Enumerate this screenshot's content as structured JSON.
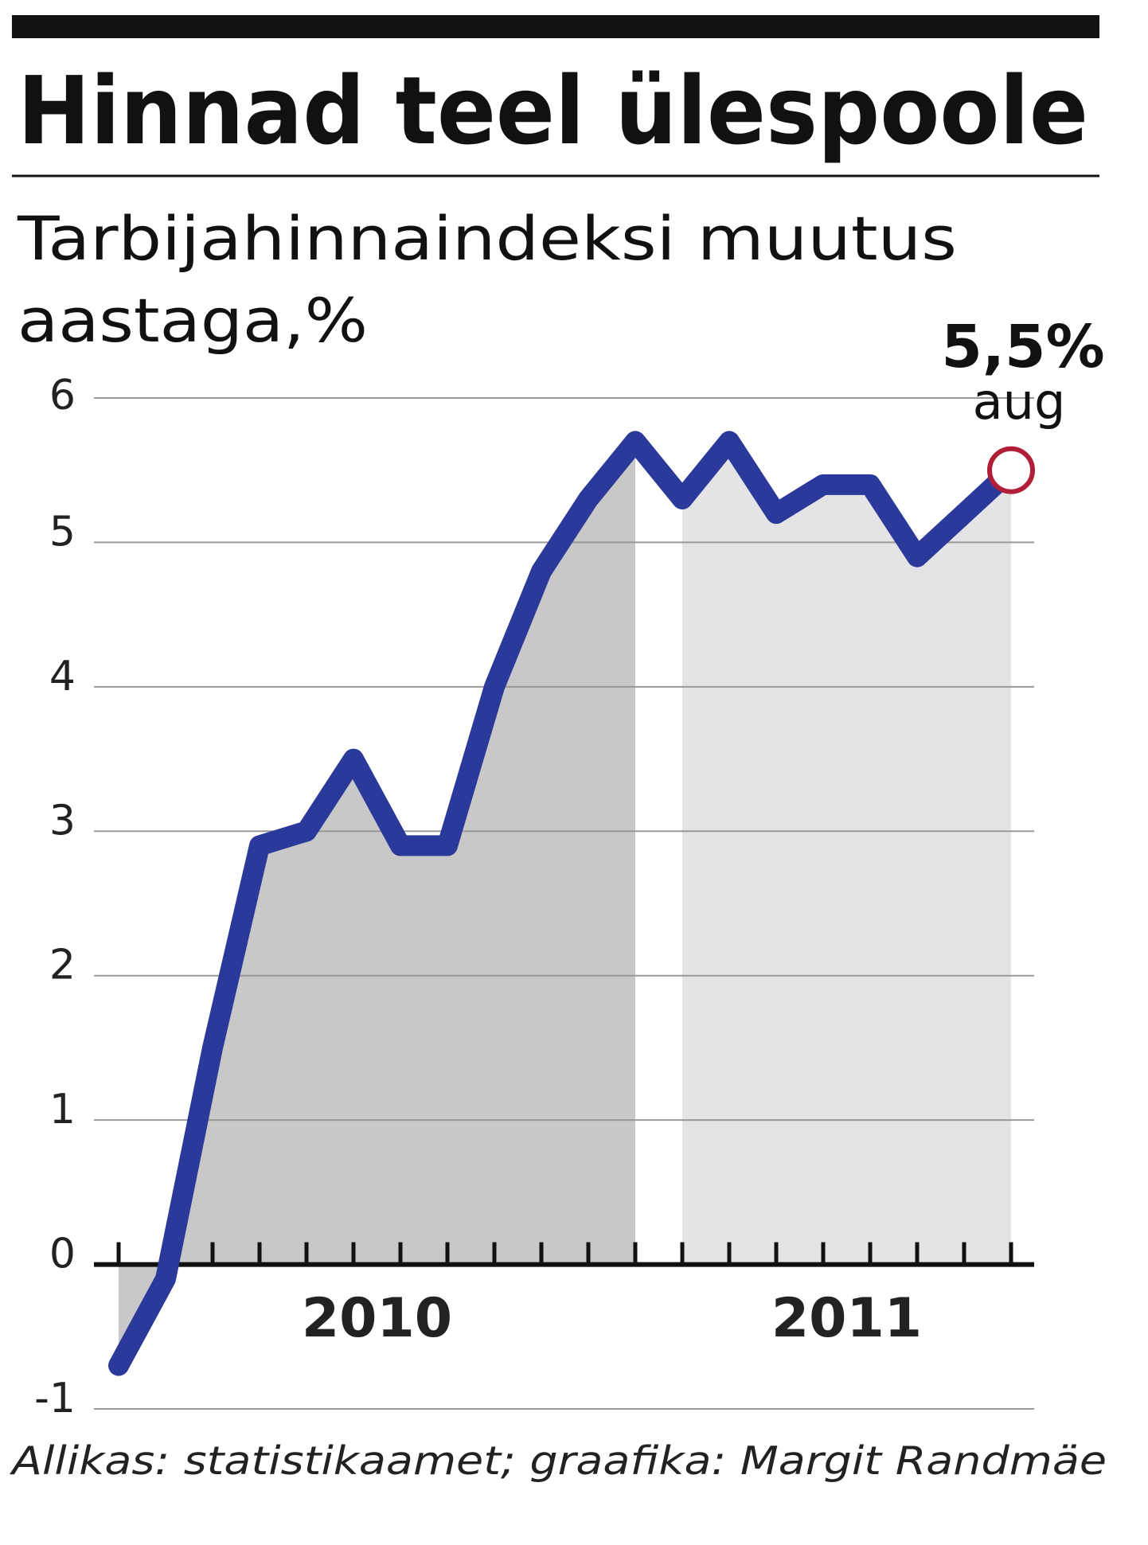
{
  "chart_data": {
    "type": "line",
    "title": "Hinnad teel ülespoole",
    "subtitle": [
      "Tarbijahinnaindeksi muutus",
      "aastaga,%"
    ],
    "source": "Allikas: statistikaamet; graafika: Margit Randmäe",
    "categories": [
      null,
      null,
      null,
      null,
      null,
      null,
      null,
      null,
      null,
      null,
      null,
      null,
      null,
      null,
      null,
      null,
      null,
      null,
      null,
      "aug"
    ],
    "groups": [
      {
        "label": "2010",
        "count": 12,
        "color": "#c8c8c8"
      },
      {
        "label": "2011",
        "count": 8,
        "color": "#e4e4e6"
      }
    ],
    "series": [
      {
        "name": "Tarbijahinnaindeks",
        "color": "#2b3a9a",
        "values": [
          -0.7,
          -0.1,
          1.5,
          2.9,
          3.0,
          3.5,
          2.9,
          2.9,
          4.0,
          4.8,
          5.3,
          5.7,
          5.3,
          5.7,
          5.2,
          5.4,
          5.4,
          4.9,
          5.2,
          5.5
        ],
        "value_labels": [
          null,
          null,
          null,
          null,
          null,
          null,
          null,
          null,
          null,
          null,
          null,
          null,
          null,
          null,
          null,
          null,
          null,
          null,
          null,
          "5,5%"
        ]
      }
    ],
    "highlight_color": "#b01e3a",
    "ylim": [
      -1,
      6
    ],
    "yticks": [
      -1,
      0,
      1,
      2,
      3,
      4,
      5,
      6
    ],
    "grid": true
  }
}
